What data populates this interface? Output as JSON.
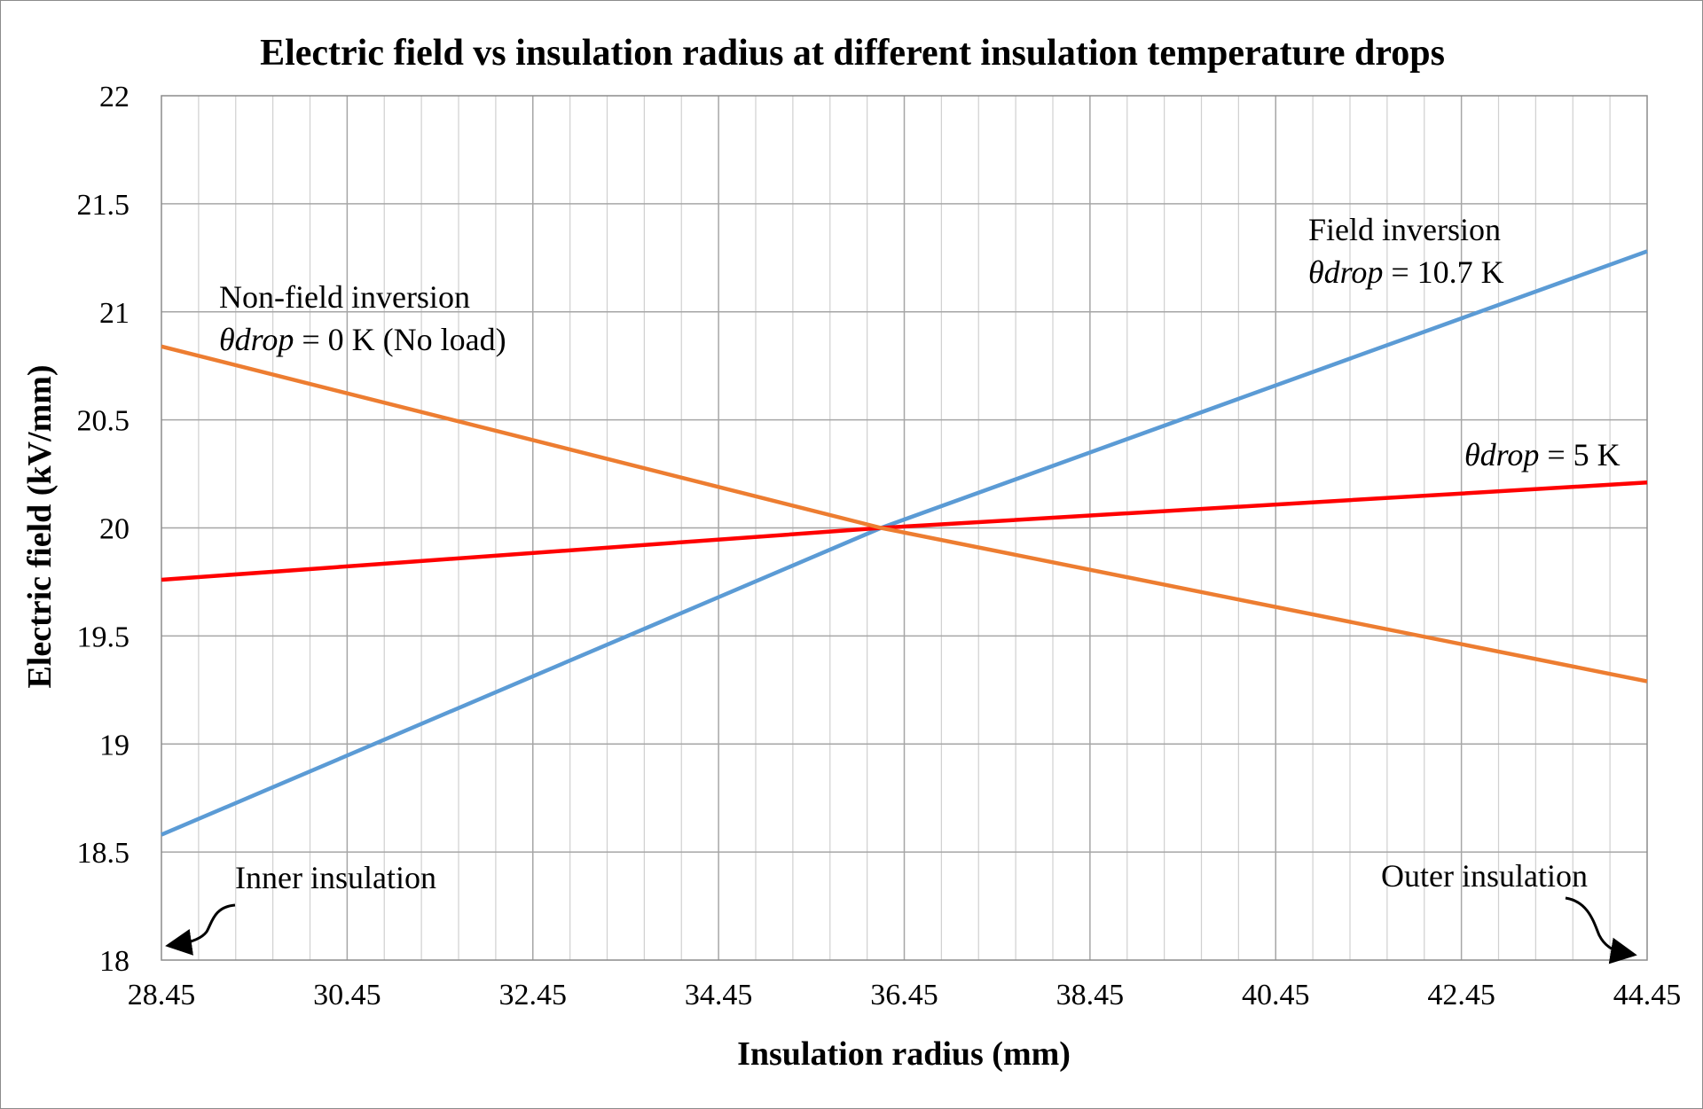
{
  "chart_data": {
    "type": "line",
    "title": "Electric field vs insulation radius at different insulation temperature drops",
    "xlabel": "Insulation radius (mm)",
    "ylabel": "Electric field (kV/mm)",
    "xlim": [
      28.45,
      44.45
    ],
    "ylim": [
      18,
      22
    ],
    "x_ticks": [
      "28.45",
      "30.45",
      "32.45",
      "34.45",
      "36.45",
      "38.45",
      "40.45",
      "42.45",
      "44.45"
    ],
    "y_ticks": [
      "18",
      "18.5",
      "19",
      "19.5",
      "20",
      "20.5",
      "21",
      "21.5",
      "22"
    ],
    "grid": true,
    "series": [
      {
        "name": "Field inversion, θdrop = 10.7 K",
        "color": "#5b9bd5",
        "x": [
          28.45,
          36.2,
          44.45
        ],
        "y": [
          18.58,
          20.0,
          21.28
        ]
      },
      {
        "name": "θdrop = 5 K",
        "color": "#ff0000",
        "x": [
          28.45,
          36.2,
          44.45
        ],
        "y": [
          19.76,
          20.0,
          20.21
        ]
      },
      {
        "name": "Non-field inversion, θdrop = 0 K (No load)",
        "color": "#ed7d31",
        "x": [
          28.45,
          36.2,
          44.45
        ],
        "y": [
          20.84,
          20.0,
          19.29
        ]
      }
    ],
    "annotations": {
      "field_inversion": {
        "line1": "Field inversion",
        "theta": "θdrop",
        "rest": " = 10.7 K"
      },
      "five_k": {
        "theta": "θdrop",
        "rest": " = 5 K"
      },
      "non_field": {
        "line1": "Non-field inversion",
        "theta": "θdrop",
        "rest": " = 0 K (No load)"
      },
      "inner": "Inner insulation",
      "outer": "Outer insulation"
    }
  }
}
